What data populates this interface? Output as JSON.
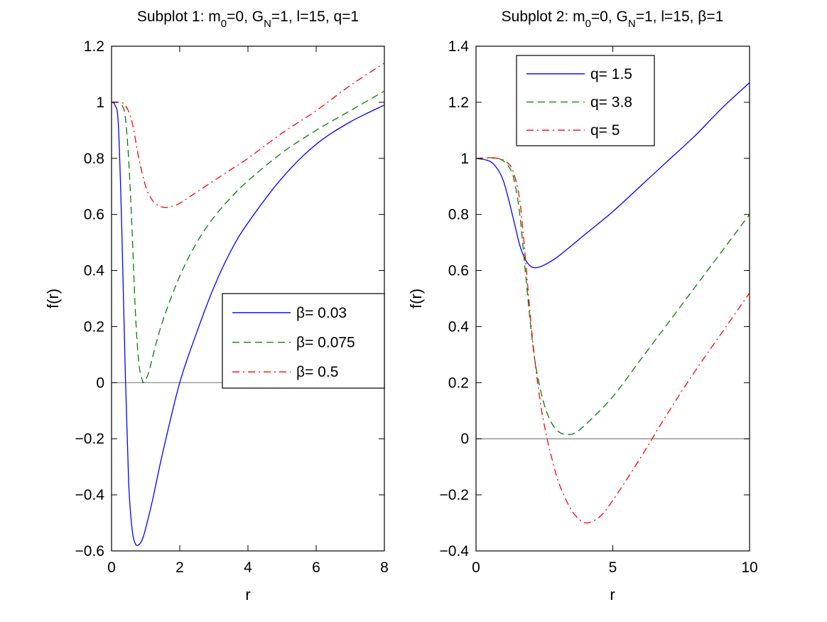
{
  "chart_data": [
    {
      "type": "line",
      "title": {
        "prefix": "Subplot 1: m",
        "sub1": "0",
        "mid": "=0, G",
        "sub2": "N",
        "suffix": "=1, l=15, q=1"
      },
      "xlabel": "r",
      "ylabel": "f(r)",
      "xlim": [
        0,
        8
      ],
      "ylim": [
        -0.6,
        1.2
      ],
      "xticks": [
        0,
        2,
        4,
        6,
        8
      ],
      "xtick_labels": [
        "0",
        "2",
        "4",
        "6",
        "8"
      ],
      "yticks": [
        -0.6,
        -0.4,
        -0.2,
        0,
        0.2,
        0.4,
        0.6,
        0.8,
        1,
        1.2
      ],
      "ytick_labels": [
        "−0.6",
        "−0.4",
        "−0.2",
        "0",
        "0.2",
        "0.4",
        "0.6",
        "0.8",
        "1",
        "1.2"
      ],
      "legend_position": "center-right",
      "series": [
        {
          "name": "β= 0.03",
          "color": "#0000ff",
          "style": "solid",
          "x": [
            0,
            0.1,
            0.2,
            0.3,
            0.4,
            0.5,
            0.6,
            0.7,
            0.8,
            0.9,
            1.0,
            1.2,
            1.5,
            2.0,
            2.5,
            3.0,
            3.5,
            4.0,
            5.0,
            6.0,
            7.0,
            8.0
          ],
          "y": [
            1.0,
            0.99,
            0.92,
            0.55,
            0.05,
            -0.35,
            -0.52,
            -0.575,
            -0.578,
            -0.56,
            -0.52,
            -0.42,
            -0.25,
            0.0,
            0.18,
            0.34,
            0.47,
            0.57,
            0.73,
            0.85,
            0.93,
            0.99
          ]
        },
        {
          "name": "β= 0.075",
          "color": "#008000",
          "style": "dashed",
          "x": [
            0,
            0.15,
            0.3,
            0.4,
            0.5,
            0.6,
            0.7,
            0.8,
            0.9,
            0.95,
            1.0,
            1.1,
            1.2,
            1.5,
            2.0,
            2.5,
            3.0,
            3.5,
            4.0,
            5.0,
            6.0,
            7.0,
            8.0
          ],
          "y": [
            1.0,
            1.0,
            0.99,
            0.95,
            0.8,
            0.55,
            0.25,
            0.07,
            0.01,
            0.0,
            0.01,
            0.04,
            0.09,
            0.22,
            0.38,
            0.5,
            0.59,
            0.66,
            0.72,
            0.82,
            0.9,
            0.97,
            1.04
          ]
        },
        {
          "name": "β= 0.5",
          "color": "#ff0000",
          "style": "dashdot",
          "x": [
            0,
            0.2,
            0.4,
            0.6,
            0.8,
            1.0,
            1.2,
            1.4,
            1.6,
            1.8,
            2.0,
            2.5,
            3.0,
            3.5,
            4.0,
            5.0,
            6.0,
            7.0,
            8.0
          ],
          "y": [
            1.0,
            1.0,
            0.99,
            0.93,
            0.8,
            0.7,
            0.65,
            0.63,
            0.625,
            0.63,
            0.64,
            0.68,
            0.72,
            0.76,
            0.8,
            0.89,
            0.97,
            1.06,
            1.14
          ]
        }
      ]
    },
    {
      "type": "line",
      "title": {
        "prefix": "Subplot 2: m",
        "sub1": "0",
        "mid": "=0, G",
        "sub2": "N",
        "suffix": "=1, l=15, β=1"
      },
      "xlabel": "r",
      "ylabel": "f(r)",
      "xlim": [
        0,
        10
      ],
      "ylim": [
        -0.4,
        1.4
      ],
      "xticks": [
        0,
        5,
        10
      ],
      "xtick_labels": [
        "0",
        "5",
        "10"
      ],
      "yticks": [
        -0.4,
        -0.2,
        0,
        0.2,
        0.4,
        0.6,
        0.8,
        1,
        1.2,
        1.4
      ],
      "ytick_labels": [
        "−0.4",
        "−0.2",
        "0",
        "0.2",
        "0.4",
        "0.6",
        "0.8",
        "1",
        "1.2",
        "1.4"
      ],
      "legend_position": "top-left",
      "series": [
        {
          "name": "q= 1.5",
          "color": "#0000ff",
          "style": "solid",
          "x": [
            0,
            0.5,
            0.8,
            1.0,
            1.2,
            1.4,
            1.6,
            1.8,
            2.0,
            2.2,
            2.5,
            3.0,
            4.0,
            5.0,
            6.0,
            7.0,
            8.0,
            9.0,
            10.0
          ],
          "y": [
            1.0,
            0.99,
            0.96,
            0.92,
            0.85,
            0.77,
            0.69,
            0.64,
            0.615,
            0.61,
            0.62,
            0.65,
            0.73,
            0.81,
            0.9,
            0.99,
            1.08,
            1.18,
            1.27
          ]
        },
        {
          "name": "q= 3.8",
          "color": "#008000",
          "style": "dashed",
          "x": [
            0,
            0.8,
            1.2,
            1.4,
            1.6,
            1.8,
            2.0,
            2.2,
            2.5,
            2.8,
            3.1,
            3.4,
            3.6,
            4.0,
            5.0,
            6.0,
            7.0,
            8.0,
            9.0,
            10.0
          ],
          "y": [
            1.0,
            1.0,
            0.97,
            0.92,
            0.8,
            0.6,
            0.4,
            0.25,
            0.12,
            0.05,
            0.02,
            0.015,
            0.02,
            0.05,
            0.15,
            0.28,
            0.41,
            0.54,
            0.67,
            0.8
          ]
        },
        {
          "name": "q= 5",
          "color": "#ff0000",
          "style": "dashdot",
          "x": [
            0,
            0.8,
            1.2,
            1.4,
            1.6,
            1.8,
            2.0,
            2.2,
            2.4,
            2.6,
            2.8,
            3.0,
            3.3,
            3.6,
            4.0,
            4.5,
            5.0,
            6.0,
            7.0,
            8.0,
            9.0,
            10.0
          ],
          "y": [
            1.0,
            1.0,
            0.98,
            0.94,
            0.85,
            0.65,
            0.42,
            0.24,
            0.1,
            0.0,
            -0.08,
            -0.15,
            -0.22,
            -0.27,
            -0.3,
            -0.28,
            -0.22,
            -0.07,
            0.09,
            0.24,
            0.38,
            0.52
          ]
        }
      ]
    }
  ]
}
